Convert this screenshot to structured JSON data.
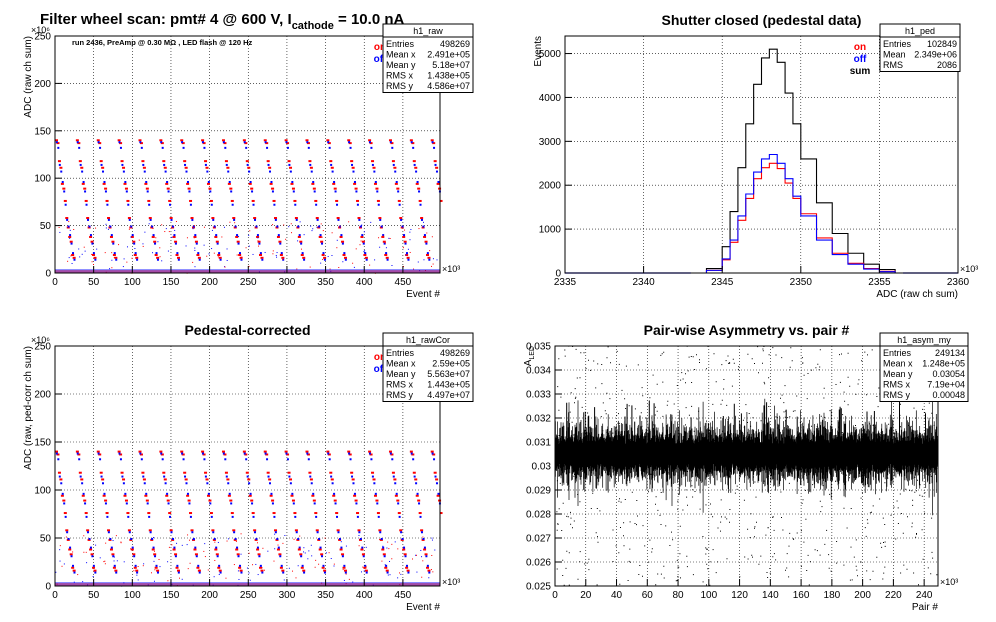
{
  "page_title": {
    "prefix": "Filter wheel scan: pmt#   4 @   600 V, I",
    "sub": "cathode",
    "suffix": " = 10.0 nA"
  },
  "chart_data": [
    {
      "id": "raw",
      "type": "scatter",
      "title": "",
      "annotation": "run 2436, PreAmp @ 0.30 MΩ , LED flash @  120 Hz",
      "xlabel": "Event #",
      "ylabel": "ADC (raw ch sum)",
      "xlim": [
        0,
        498
      ],
      "ylim": [
        0,
        250
      ],
      "x_exponent": "×10³",
      "y_exponent": "×10⁶",
      "x_ticks": [
        0,
        50,
        100,
        150,
        200,
        250,
        300,
        350,
        400,
        450
      ],
      "y_ticks": [
        0,
        50,
        100,
        150,
        200,
        250
      ],
      "grid": true,
      "legend": [
        {
          "name": "on",
          "color": "#ff0000"
        },
        {
          "name": "off",
          "color": "#0000ff"
        }
      ],
      "levels_on": [
        140,
        137,
        118,
        111,
        94,
        89,
        76,
        58,
        48,
        38,
        33,
        19,
        16
      ],
      "levels_off": [
        138,
        132,
        114,
        107,
        96,
        86,
        72,
        56,
        49,
        40,
        31,
        21,
        14
      ],
      "period": 27,
      "stats": {
        "name": "h1_raw",
        "rows": [
          [
            "Entries",
            "498269"
          ],
          [
            "Mean x",
            "2.491e+05"
          ],
          [
            "Mean y",
            "5.18e+07"
          ],
          [
            "RMS x",
            "1.438e+05"
          ],
          [
            "RMS y",
            "4.586e+07"
          ]
        ]
      }
    },
    {
      "id": "ped",
      "type": "line",
      "title": "Shutter closed (pedestal data)",
      "xlabel": "ADC (raw ch sum)",
      "ylabel": "Events",
      "xlim": [
        2335,
        2360
      ],
      "ylim": [
        0,
        5400
      ],
      "x_exponent": "×10³",
      "x_ticks": [
        2335,
        2340,
        2345,
        2350,
        2355,
        2360
      ],
      "y_ticks": [
        0,
        1000,
        2000,
        3000,
        4000,
        5000
      ],
      "grid": true,
      "legend": [
        {
          "name": "on",
          "color": "#ff0000"
        },
        {
          "name": "off",
          "color": "#0000ff"
        },
        {
          "name": "sum",
          "color": "#000000"
        }
      ],
      "series": [
        {
          "name": "sum",
          "color": "#000000",
          "x": [
            2343,
            2344,
            2345,
            2345.5,
            2346,
            2346.5,
            2347,
            2347.5,
            2348,
            2348.5,
            2349,
            2349.5,
            2350,
            2351,
            2352,
            2353,
            2354,
            2355,
            2356
          ],
          "y": [
            0,
            100,
            600,
            1400,
            2400,
            3400,
            4300,
            4900,
            5100,
            4800,
            4100,
            3400,
            2600,
            1600,
            900,
            450,
            200,
            80,
            0
          ]
        },
        {
          "name": "on",
          "color": "#ff0000",
          "x": [
            2343,
            2344,
            2345,
            2345.5,
            2346,
            2346.5,
            2347,
            2347.5,
            2348,
            2348.5,
            2349,
            2349.5,
            2350,
            2351,
            2352,
            2353,
            2354,
            2355,
            2356
          ],
          "y": [
            0,
            60,
            300,
            700,
            1200,
            1700,
            2150,
            2400,
            2500,
            2380,
            2050,
            1700,
            1350,
            800,
            450,
            220,
            100,
            40,
            0
          ]
        },
        {
          "name": "off",
          "color": "#0000ff",
          "x": [
            2343,
            2344,
            2345,
            2345.5,
            2346,
            2346.5,
            2347,
            2347.5,
            2348,
            2348.5,
            2349,
            2349.5,
            2350,
            2351,
            2352,
            2353,
            2354,
            2355,
            2356
          ],
          "y": [
            0,
            60,
            320,
            750,
            1300,
            1800,
            2300,
            2600,
            2700,
            2500,
            2150,
            1750,
            1300,
            750,
            420,
            200,
            90,
            30,
            0
          ]
        }
      ],
      "stats": {
        "name": "h1_ped",
        "rows": [
          [
            "Entries",
            "102849"
          ],
          [
            "Mean",
            "2.349e+06"
          ],
          [
            "RMS",
            "2086"
          ]
        ]
      }
    },
    {
      "id": "rawCor",
      "type": "scatter",
      "title": "Pedestal-corrected",
      "xlabel": "Event #",
      "ylabel": "ADC (raw, ped-corr ch sum)",
      "xlim": [
        0,
        498
      ],
      "ylim": [
        0,
        250
      ],
      "x_exponent": "×10³",
      "y_exponent": "×10⁶",
      "x_ticks": [
        0,
        50,
        100,
        150,
        200,
        250,
        300,
        350,
        400,
        450
      ],
      "y_ticks": [
        0,
        50,
        100,
        150,
        200,
        250
      ],
      "grid": true,
      "legend": [
        {
          "name": "on",
          "color": "#ff0000"
        },
        {
          "name": "off",
          "color": "#0000ff"
        }
      ],
      "levels_on": [
        140,
        137,
        118,
        111,
        94,
        89,
        76,
        58,
        48,
        38,
        33,
        19,
        16
      ],
      "levels_off": [
        138,
        132,
        114,
        107,
        96,
        86,
        72,
        56,
        49,
        40,
        31,
        21,
        14
      ],
      "period": 27,
      "stats": {
        "name": "h1_rawCor",
        "rows": [
          [
            "Entries",
            "498269"
          ],
          [
            "Mean x",
            "2.59e+05"
          ],
          [
            "Mean y",
            "5.563e+07"
          ],
          [
            "RMS x",
            "1.443e+05"
          ],
          [
            "RMS y",
            "4.497e+07"
          ]
        ]
      }
    },
    {
      "id": "asym",
      "type": "scatter",
      "title": "Pair-wise Asymmetry vs. pair #",
      "xlabel": "Pair #",
      "ylabel": "A",
      "ylabel_sub": "LED",
      "xlim": [
        0,
        249
      ],
      "ylim": [
        0.025,
        0.035
      ],
      "x_exponent": "×10³",
      "x_ticks": [
        0,
        20,
        40,
        60,
        80,
        100,
        120,
        140,
        160,
        180,
        200,
        220,
        240
      ],
      "y_ticks": [
        0.025,
        0.026,
        0.027,
        0.028,
        0.029,
        0.03,
        0.031,
        0.032,
        0.033,
        0.034,
        0.035
      ],
      "grid": true,
      "band_center": 0.0305,
      "band_halfwidth": 0.0005,
      "stats": {
        "name": "h1_asym_my",
        "rows": [
          [
            "Entries",
            "249134"
          ],
          [
            "Mean x",
            "1.248e+05"
          ],
          [
            "Mean y",
            "0.03054"
          ],
          [
            "RMS x",
            "7.19e+04"
          ],
          [
            "RMS y",
            "0.00048"
          ]
        ]
      }
    }
  ]
}
